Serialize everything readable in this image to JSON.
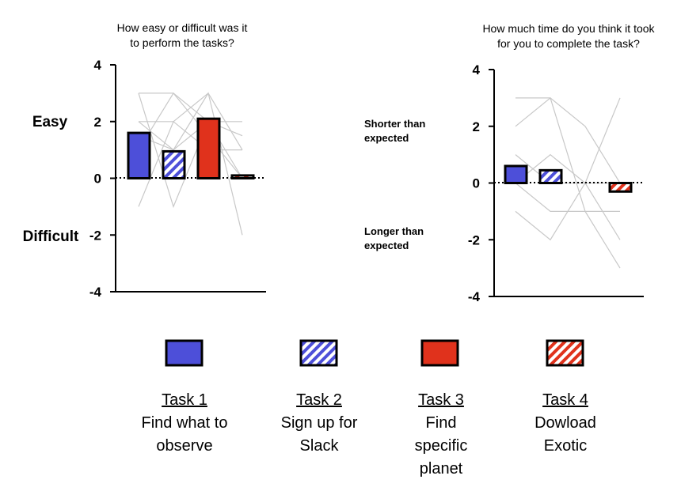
{
  "colors": {
    "blue": "#4d4fd9",
    "red": "#e0321c",
    "grey_line": "#c8c8c8",
    "axis": "#000000"
  },
  "chart_data": [
    {
      "type": "bar",
      "title": "How easy or difficult was it to perform the tasks?",
      "title_lines": [
        "How easy or difficult was it",
        "to perform the tasks?"
      ],
      "categories": [
        "Task 1",
        "Task 2",
        "Task 3",
        "Task 4"
      ],
      "values": [
        1.6,
        0.95,
        2.1,
        0.1
      ],
      "patterns": [
        "solid-blue",
        "hatch-blue",
        "solid-red",
        "hatch-red"
      ],
      "ylim": [
        -4,
        4
      ],
      "yticks": [
        4,
        2,
        0,
        -2,
        -4
      ],
      "ytick_labels": [
        "4",
        "2",
        "0",
        "-2",
        "-4"
      ],
      "upper_label": "Easy",
      "lower_label": "Difficult",
      "individual_lines": [
        [
          3,
          3,
          2,
          1.5
        ],
        [
          2,
          2,
          3,
          1
        ],
        [
          1.5,
          1,
          2,
          2
        ],
        [
          2,
          1,
          3,
          -2
        ],
        [
          -1,
          2,
          1,
          1
        ],
        [
          1,
          3,
          1.5,
          0
        ],
        [
          3,
          -1,
          2,
          0
        ]
      ]
    },
    {
      "type": "bar",
      "title": "How much time do you think it took for you to complete the task?",
      "title_lines": [
        "How much time do you think it took",
        "for you to complete the task?"
      ],
      "categories": [
        "Task 1",
        "Task 2",
        "Task 3",
        "Task 4"
      ],
      "values": [
        0.6,
        0.45,
        0,
        -0.3
      ],
      "patterns": [
        "solid-blue",
        "hatch-blue",
        "solid-red",
        "hatch-red"
      ],
      "ylim": [
        -4,
        4
      ],
      "yticks": [
        4,
        2,
        0,
        -2,
        -4
      ],
      "ytick_labels": [
        "4",
        "2",
        "0",
        "-2",
        "-4"
      ],
      "upper_label_lines": [
        "Shorter than",
        "expected"
      ],
      "lower_label_lines": [
        "Longer than",
        "expected"
      ],
      "individual_lines": [
        [
          3,
          3,
          -1,
          -1
        ],
        [
          2,
          3,
          2,
          0
        ],
        [
          -1,
          -2,
          0,
          3
        ],
        [
          0,
          -1,
          -1,
          -3
        ],
        [
          1,
          0,
          0,
          -2
        ],
        [
          0,
          1,
          0,
          0
        ]
      ]
    }
  ],
  "legend": [
    {
      "swatch": "solid-blue",
      "task": "Task 1",
      "lines": [
        "Find what to",
        "observe"
      ]
    },
    {
      "swatch": "hatch-blue",
      "task": "Task 2",
      "lines": [
        "Sign up for",
        "Slack"
      ]
    },
    {
      "swatch": "solid-red",
      "task": "Task 3",
      "lines": [
        "Find",
        "specific",
        "planet"
      ]
    },
    {
      "swatch": "hatch-red",
      "task": "Task 4",
      "lines": [
        "Dowload",
        "Exotic"
      ]
    }
  ]
}
